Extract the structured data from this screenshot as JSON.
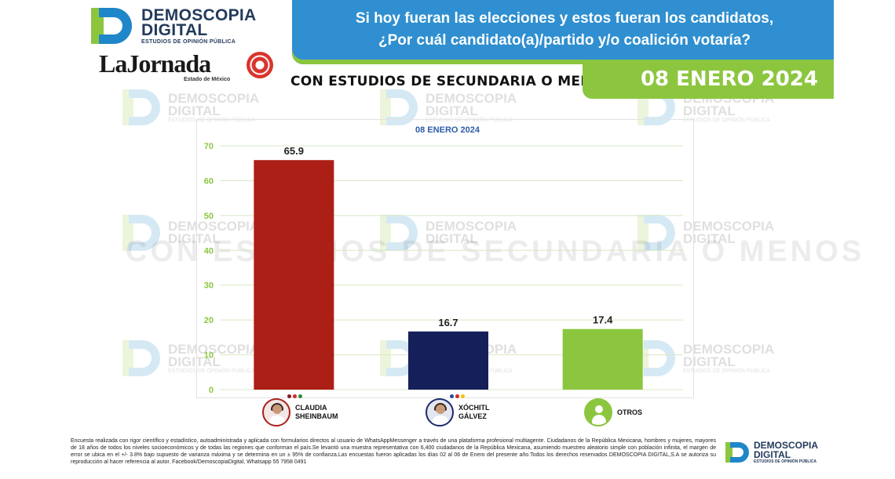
{
  "header": {
    "brand_line1": "DEMOSCOPIA",
    "brand_line2": "DIGITAL",
    "brand_tagline": "ESTUDIOS DE OPINIÓN PÚBLICA",
    "partner_name": "LaJornada",
    "partner_sub": "Estado de México",
    "question_line1": "Si hoy fueran las elecciones y estos fueran los candidatos,",
    "question_line2": "¿Por cuál candidato(a)/partido y/o coalición votaría?",
    "segment": "CON ESTUDIOS DE SECUNDARIA O MENOS",
    "date": "08 ENERO 2024"
  },
  "watermark": {
    "line1": "DEMOSCOPIA",
    "line2": "DIGITAL",
    "tagline": "ESTUDIOS DE OPINIÓN PÚBLICA",
    "big_text": "CON ESTUDIOS DE SECUNDARIA O MENOS"
  },
  "chart_data": {
    "type": "bar",
    "title": "08 ENERO 2024",
    "categories": [
      "CLAUDIA SHEINBAUM",
      "XÓCHITL GÁLVEZ",
      "OTROS"
    ],
    "values": [
      65.9,
      16.7,
      17.4
    ],
    "data_labels": [
      "65.9",
      "16.7",
      "17.4"
    ],
    "colors": [
      "#ab1f17",
      "#15205b",
      "#8cc63f"
    ],
    "ylim": [
      0,
      70
    ],
    "yticks": [
      0,
      10,
      20,
      30,
      40,
      50,
      60,
      70
    ],
    "grid": true,
    "xlabel": "",
    "ylabel": ""
  },
  "candidates": [
    {
      "first": "CLAUDIA",
      "last": "SHEINBAUM",
      "avatar_icon": "claudia-avatar-icon",
      "party_colors": [
        "#8b1c1c",
        "#d62828",
        "#2d8a3a"
      ]
    },
    {
      "first": "XÓCHITL",
      "last": "GÁLVEZ",
      "avatar_icon": "xochitl-avatar-icon",
      "party_colors": [
        "#1e4fa0",
        "#d62828",
        "#f2c200"
      ]
    },
    {
      "first": "OTROS",
      "last": "",
      "avatar_icon": "person-icon",
      "party_colors": []
    }
  ],
  "footer": {
    "note": "Encuesta realizada con rigor científico y estadístico, autoadministrada y aplicada con formularios directos al usuario de WhatsAppMessenger a través de una plataforma profesional multiagente. Ciudadanos de la República Mexicana, hombres y mujeres, mayores de 18 años de todos los niveles socioeconómicos y de todas las regiones que conforman el país.Se levantó una muestra representativa con 6,400 ciudadanos de la República Mexicana, asumiendo muestreo aleatorio simple con población infinita, el margen de error se ubica en el +/- 3.8% bajo supuesto de varianza máxima y se determina en un ± 95% de confianza.Las encuestas fueron aplicadas los días 02 al 06 de Enero del presente año.Todos los derechos reservados DEMOSCOPIA DIGITAL,S.A se autoriza su reproducción al hacer referencia al autor. Facebook/DemoscopiaDigital, Whatsapp 55 7958 0491",
    "brand_line1": "DEMOSCOPIA",
    "brand_line2": "DIGITAL",
    "brand_tagline": "ESTUDIOS DE OPINIÓN PÚBLICA"
  }
}
